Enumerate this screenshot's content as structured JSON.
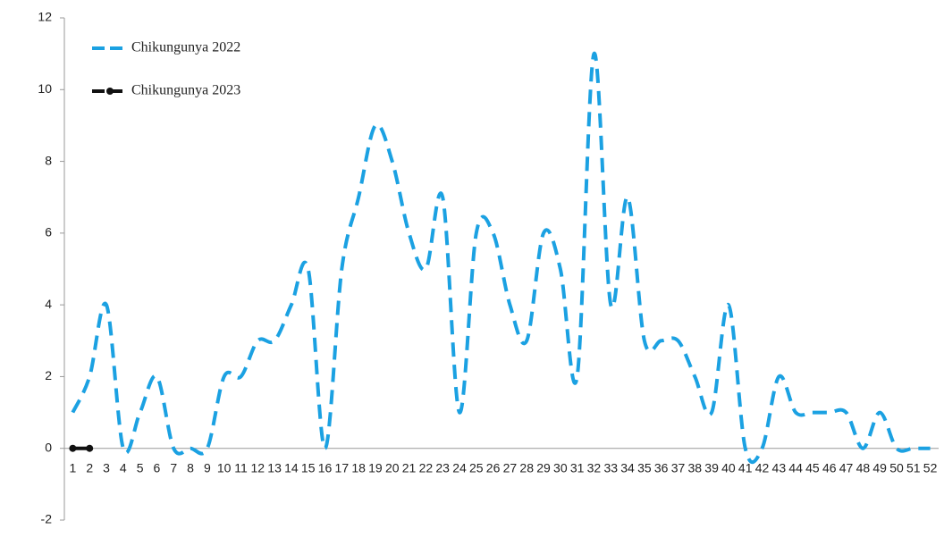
{
  "chart_data": {
    "type": "line",
    "categories": [
      1,
      2,
      3,
      4,
      5,
      6,
      7,
      8,
      9,
      10,
      11,
      12,
      13,
      14,
      15,
      16,
      17,
      18,
      19,
      20,
      21,
      22,
      23,
      24,
      25,
      26,
      27,
      28,
      29,
      30,
      31,
      32,
      33,
      34,
      35,
      36,
      37,
      38,
      39,
      40,
      41,
      42,
      43,
      44,
      45,
      46,
      47,
      48,
      49,
      50,
      51,
      52
    ],
    "series": [
      {
        "name": "Chikungunya 2022",
        "color": "#1ba1e2",
        "markers": false,
        "values": [
          1,
          2,
          4,
          0,
          1,
          2,
          0,
          0,
          0,
          2,
          2,
          3,
          3,
          4,
          5,
          0,
          5,
          7,
          9,
          8,
          6,
          5,
          7,
          1,
          6,
          6,
          4,
          3,
          6,
          5,
          2,
          11,
          4,
          7,
          3,
          3,
          3,
          2,
          1,
          4,
          0,
          0,
          2,
          1,
          1,
          1,
          1,
          0,
          1,
          0,
          0,
          0
        ]
      },
      {
        "name": "Chikungunya 2023",
        "color": "#111111",
        "markers": true,
        "values": [
          0,
          0,
          null,
          null,
          null,
          null,
          null,
          null,
          null,
          null,
          null,
          null,
          null,
          null,
          null,
          null,
          null,
          null,
          null,
          null,
          null,
          null,
          null,
          null,
          null,
          null,
          null,
          null,
          null,
          null,
          null,
          null,
          null,
          null,
          null,
          null,
          null,
          null,
          null,
          null,
          null,
          null,
          null,
          null,
          null,
          null,
          null,
          null,
          null,
          null,
          null,
          null
        ]
      }
    ],
    "ylim": [
      -2,
      12
    ],
    "yticks": [
      -2,
      0,
      2,
      4,
      6,
      8,
      10,
      12
    ],
    "grid": false,
    "legend": "upper-left"
  }
}
